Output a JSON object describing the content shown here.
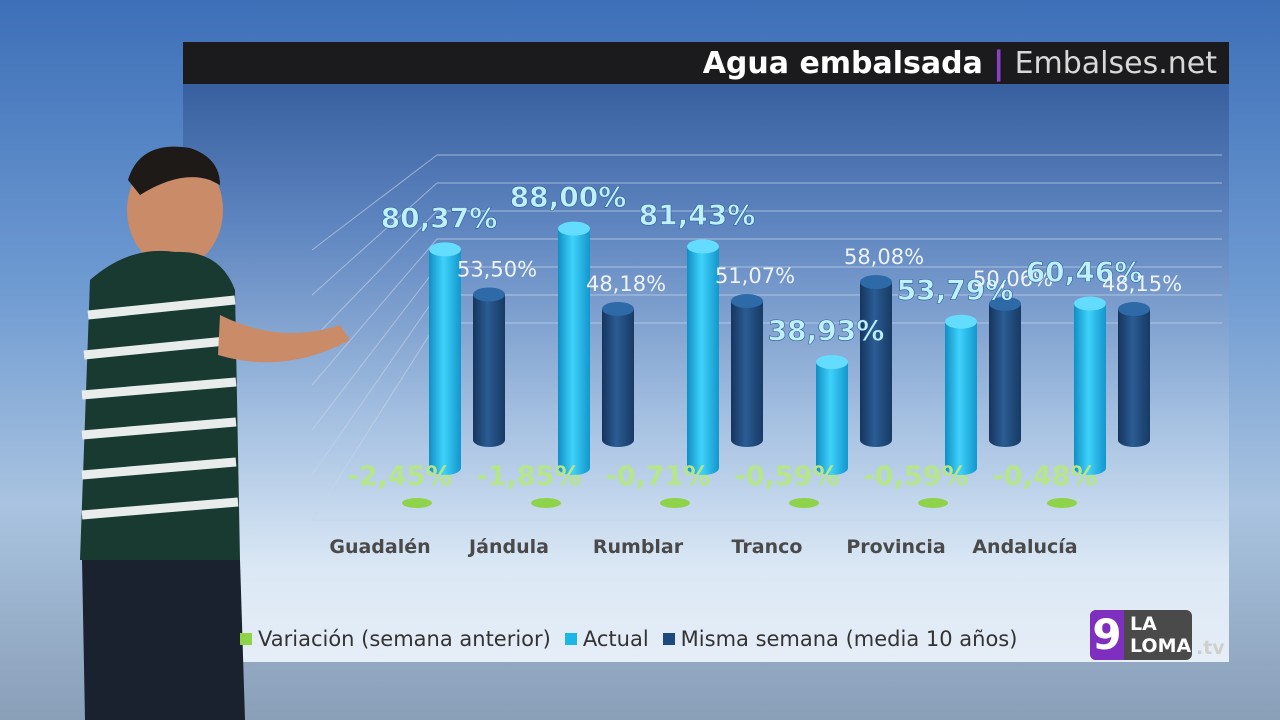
{
  "header": {
    "title": "Agua embalsada",
    "separator": "|",
    "brand": "Embalses.net"
  },
  "chart_data": {
    "type": "bar",
    "title": "Agua embalsada",
    "categories": [
      "Guadalén",
      "Jándula",
      "Rumblar",
      "Tranco",
      "Provincia",
      "Andalucía"
    ],
    "series": [
      {
        "name": "Variación (semana anterior)",
        "values": [
          -2.45,
          -1.85,
          -0.71,
          -0.59,
          -0.59,
          -0.48
        ],
        "labels": [
          "-2,45%",
          "-1,85%",
          "-0,71%",
          "-0,59%",
          "-0,59%",
          "-0,48%"
        ],
        "color": "#8fd34a"
      },
      {
        "name": "Actual",
        "values": [
          80.37,
          88.0,
          81.43,
          38.93,
          53.79,
          60.46
        ],
        "labels": [
          "80,37%",
          "88,00%",
          "81,43%",
          "38,93%",
          "53,79%",
          "60,46%"
        ],
        "color": "#1bb7e6"
      },
      {
        "name": "Misma semana (media 10 años)",
        "values": [
          53.5,
          48.18,
          51.07,
          58.08,
          50.06,
          48.15
        ],
        "labels": [
          "53,50%",
          "48,18%",
          "51,07%",
          "58,08%",
          "50,06%",
          "48,15%"
        ],
        "color": "#1d4a7e"
      }
    ],
    "ylim": [
      0,
      100
    ],
    "grid": true,
    "legend_position": "bottom"
  },
  "legend": {
    "items": [
      {
        "label": "Variación (semana anterior)",
        "color": "#8fd34a"
      },
      {
        "label": "Actual",
        "color": "#1bb7e6"
      },
      {
        "label": "Misma semana (media 10 años)",
        "color": "#1d4a7e"
      }
    ]
  },
  "logo": {
    "number": "9",
    "line1": "LA",
    "line2": "LOMA",
    "suffix": ".tv"
  }
}
